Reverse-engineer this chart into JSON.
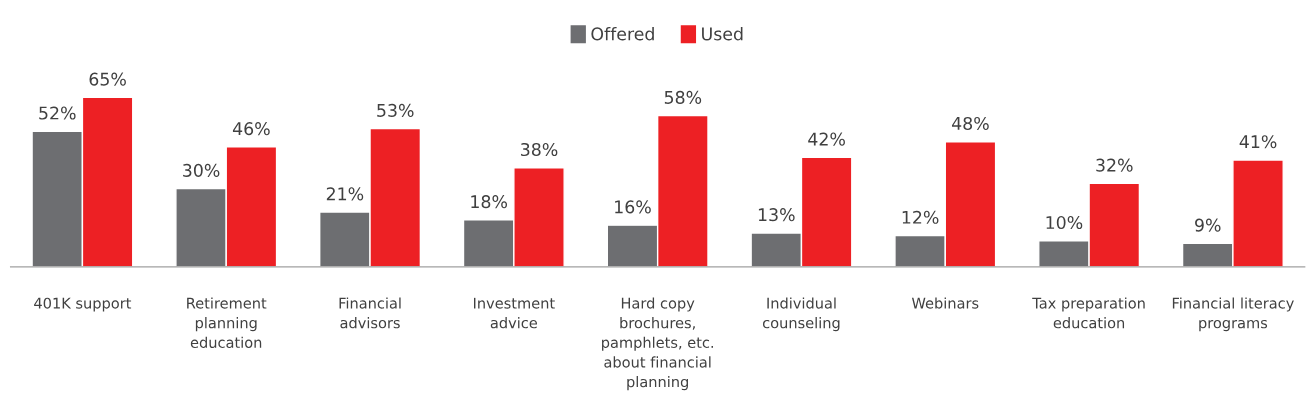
{
  "chart_data": {
    "type": "bar",
    "categories": [
      "401K support",
      "Retirement\nplanning\neducation",
      "Financial\nadvisors",
      "Investment\nadvice",
      "Hard copy\nbrochures,\npamphlets, etc.\nabout financial\nplanning",
      "Individual\ncounseling",
      "Webinars",
      "Tax preparation\neducation",
      "Financial literacy\nprograms"
    ],
    "series": [
      {
        "name": "Offered",
        "color": "#6d6e71",
        "values": [
          52,
          30,
          21,
          18,
          16,
          13,
          12,
          10,
          9
        ],
        "value_labels": [
          "52%",
          "30%",
          "21%",
          "18%",
          "16%",
          "13%",
          "12%",
          "10%",
          "9%"
        ]
      },
      {
        "name": "Used",
        "color": "#ed2024",
        "values": [
          65,
          46,
          53,
          38,
          58,
          42,
          48,
          32,
          41
        ],
        "value_labels": [
          "65%",
          "46%",
          "53%",
          "38%",
          "58%",
          "42%",
          "48%",
          "32%",
          "41%"
        ]
      }
    ],
    "legend": "top",
    "grid": false
  }
}
